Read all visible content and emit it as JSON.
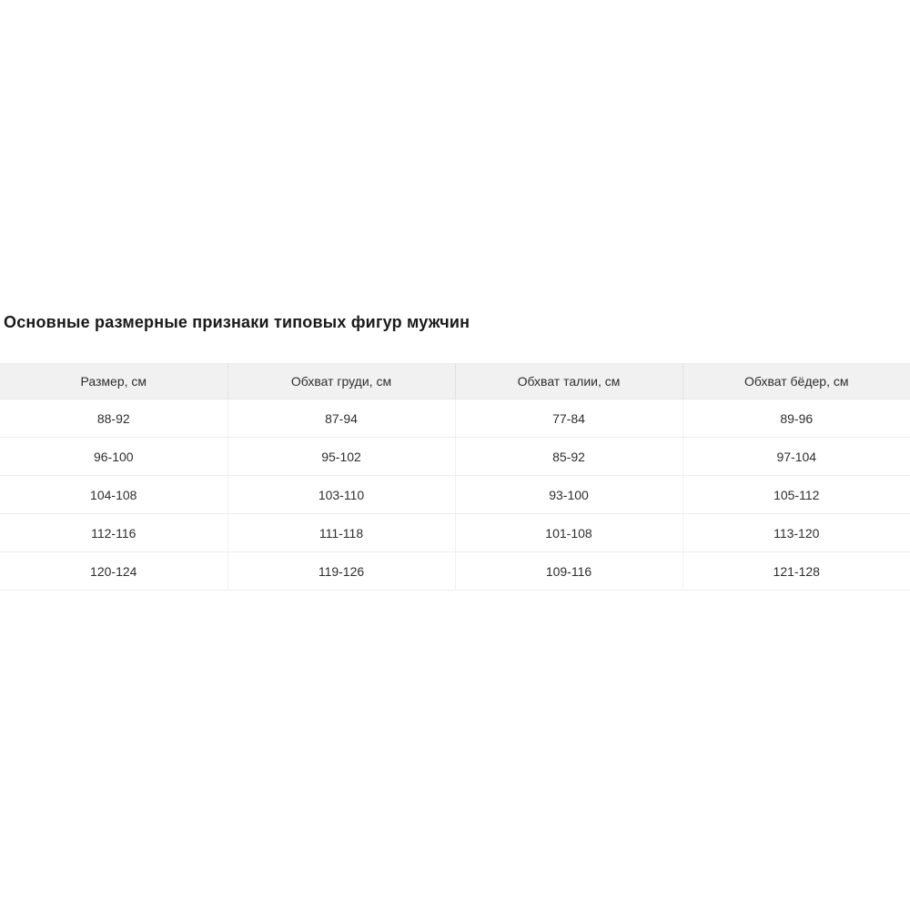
{
  "page": {
    "title": "Основные размерные признаки типовых фигур мужчин"
  },
  "table": {
    "columns": [
      "Размер, см",
      "Обхват груди, см",
      "Обхват талии, см",
      "Обхват бёдер, см"
    ],
    "rows": [
      [
        "88-92",
        "87-94",
        "77-84",
        "89-96"
      ],
      [
        "96-100",
        "95-102",
        "85-92",
        "97-104"
      ],
      [
        "104-108",
        "103-110",
        "93-100",
        "105-112"
      ],
      [
        "112-116",
        "111-118",
        "101-108",
        "113-120"
      ],
      [
        "120-124",
        "119-126",
        "109-116",
        "121-128"
      ]
    ]
  },
  "colors": {
    "header_background": "#f1f1f1",
    "row_background": "#ffffff",
    "border": "#ececec",
    "text": "#2e2e2e",
    "title_text": "#1a1a1a"
  }
}
